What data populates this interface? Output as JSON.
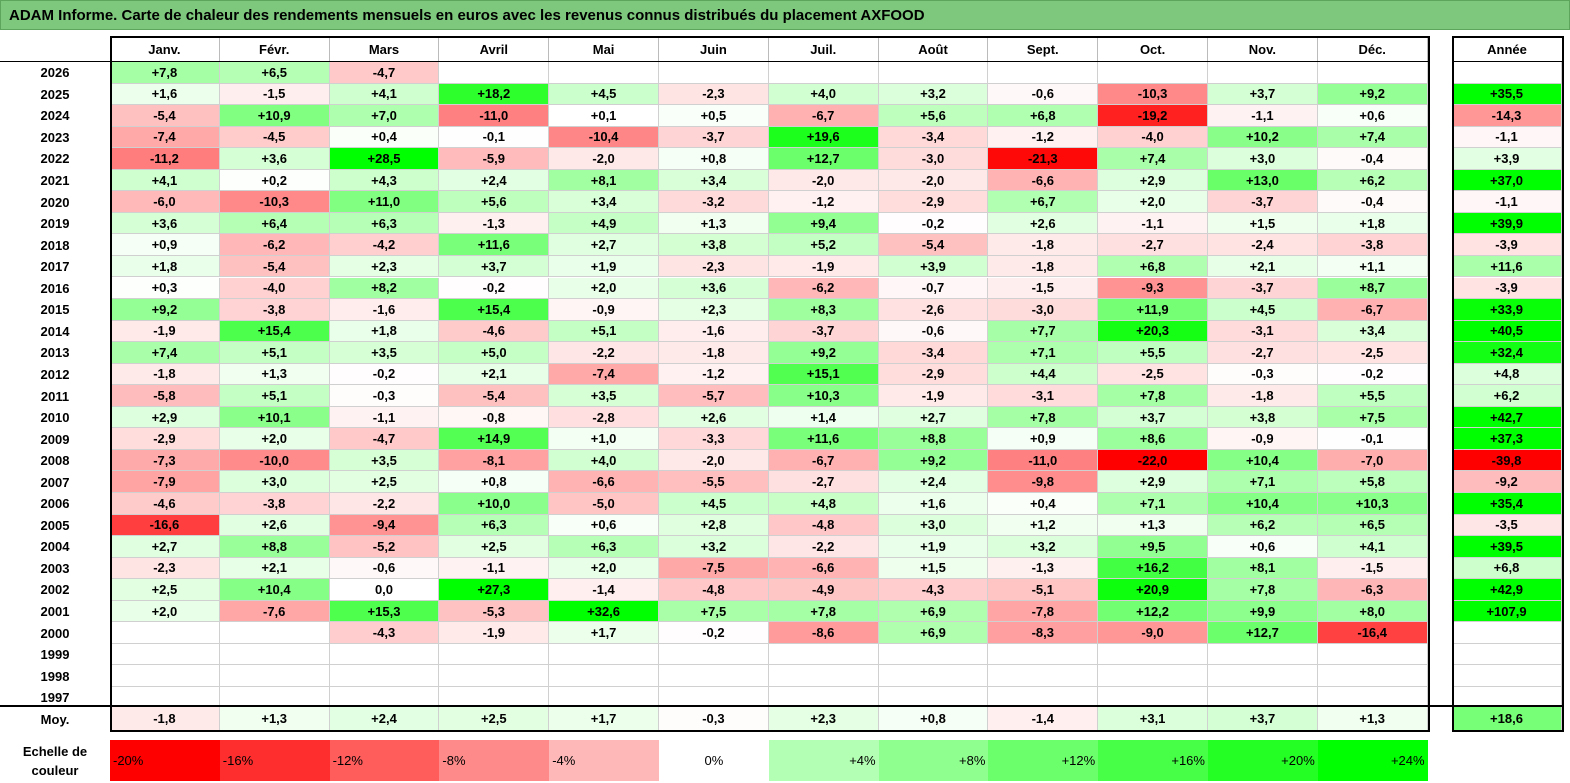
{
  "title": "ADAM Informe. Carte de chaleur des rendements mensuels en euros avec les revenus connus distribués du placement AXFOOD",
  "chart_data": {
    "type": "heatmap",
    "months": [
      "Janv.",
      "Févr.",
      "Mars",
      "Avril",
      "Mai",
      "Juin",
      "Juil.",
      "Août",
      "Sept.",
      "Oct.",
      "Nov.",
      "Déc."
    ],
    "year_header": "Année",
    "rows": [
      {
        "year": "2026",
        "months": [
          "+7,8",
          "+6,5",
          "-4,7",
          "",
          "",
          "",
          "",
          "",
          "",
          "",
          "",
          ""
        ],
        "annual": ""
      },
      {
        "year": "2025",
        "months": [
          "+1,6",
          "-1,5",
          "+4,1",
          "+18,2",
          "+4,5",
          "-2,3",
          "+4,0",
          "+3,2",
          "-0,6",
          "-10,3",
          "+3,7",
          "+9,2"
        ],
        "annual": "+35,5"
      },
      {
        "year": "2024",
        "months": [
          "-5,4",
          "+10,9",
          "+7,0",
          "-11,0",
          "+0,1",
          "+0,5",
          "-6,7",
          "+5,6",
          "+6,8",
          "-19,2",
          "-1,1",
          "+0,6"
        ],
        "annual": "-14,3"
      },
      {
        "year": "2023",
        "months": [
          "-7,4",
          "-4,5",
          "+0,4",
          "-0,1",
          "-10,4",
          "-3,7",
          "+19,6",
          "-3,4",
          "-1,2",
          "-4,0",
          "+10,2",
          "+7,4"
        ],
        "annual": "-1,1"
      },
      {
        "year": "2022",
        "months": [
          "-11,2",
          "+3,6",
          "+28,5",
          "-5,9",
          "-2,0",
          "+0,8",
          "+12,7",
          "-3,0",
          "-21,3",
          "+7,4",
          "+3,0",
          "-0,4"
        ],
        "annual": "+3,9"
      },
      {
        "year": "2021",
        "months": [
          "+4,1",
          "+0,2",
          "+4,3",
          "+2,4",
          "+8,1",
          "+3,4",
          "-2,0",
          "-2,0",
          "-6,6",
          "+2,9",
          "+13,0",
          "+6,2"
        ],
        "annual": "+37,0"
      },
      {
        "year": "2020",
        "months": [
          "-6,0",
          "-10,3",
          "+11,0",
          "+5,6",
          "+3,4",
          "-3,2",
          "-1,2",
          "-2,9",
          "+6,7",
          "+2,0",
          "-3,7",
          "-0,4"
        ],
        "annual": "-1,1"
      },
      {
        "year": "2019",
        "months": [
          "+3,6",
          "+6,4",
          "+6,3",
          "-1,3",
          "+4,9",
          "+1,3",
          "+9,4",
          "-0,2",
          "+2,6",
          "-1,1",
          "+1,5",
          "+1,8"
        ],
        "annual": "+39,9"
      },
      {
        "year": "2018",
        "months": [
          "+0,9",
          "-6,2",
          "-4,2",
          "+11,6",
          "+2,7",
          "+3,8",
          "+5,2",
          "-5,4",
          "-1,8",
          "-2,7",
          "-2,4",
          "-3,8"
        ],
        "annual": "-3,9"
      },
      {
        "year": "2017",
        "months": [
          "+1,8",
          "-5,4",
          "+2,3",
          "+3,7",
          "+1,9",
          "-2,3",
          "-1,9",
          "+3,9",
          "-1,8",
          "+6,8",
          "+2,1",
          "+1,1"
        ],
        "annual": "+11,6"
      },
      {
        "year": "2016",
        "months": [
          "+0,3",
          "-4,0",
          "+8,2",
          "-0,2",
          "+2,0",
          "+3,6",
          "-6,2",
          "-0,7",
          "-1,5",
          "-9,3",
          "-3,7",
          "+8,7"
        ],
        "annual": "-3,9"
      },
      {
        "year": "2015",
        "months": [
          "+9,2",
          "-3,8",
          "-1,6",
          "+15,4",
          "-0,9",
          "+2,3",
          "+8,3",
          "-2,6",
          "-3,0",
          "+11,9",
          "+4,5",
          "-6,7"
        ],
        "annual": "+33,9"
      },
      {
        "year": "2014",
        "months": [
          "-1,9",
          "+15,4",
          "+1,8",
          "-4,6",
          "+5,1",
          "-1,6",
          "-3,7",
          "-0,6",
          "+7,7",
          "+20,3",
          "-3,1",
          "+3,4"
        ],
        "annual": "+40,5"
      },
      {
        "year": "2013",
        "months": [
          "+7,4",
          "+5,1",
          "+3,5",
          "+5,0",
          "-2,2",
          "-1,8",
          "+9,2",
          "-3,4",
          "+7,1",
          "+5,5",
          "-2,7",
          "-2,5"
        ],
        "annual": "+32,4"
      },
      {
        "year": "2012",
        "months": [
          "-1,8",
          "+1,3",
          "-0,2",
          "+2,1",
          "-7,4",
          "-1,2",
          "+15,1",
          "-2,9",
          "+4,4",
          "-2,5",
          "-0,3",
          "-0,2"
        ],
        "annual": "+4,8"
      },
      {
        "year": "2011",
        "months": [
          "-5,8",
          "+5,1",
          "-0,3",
          "-5,4",
          "+3,5",
          "-5,7",
          "+10,3",
          "-1,9",
          "-3,1",
          "+7,8",
          "-1,8",
          "+5,5"
        ],
        "annual": "+6,2"
      },
      {
        "year": "2010",
        "months": [
          "+2,9",
          "+10,1",
          "-1,1",
          "-0,8",
          "-2,8",
          "+2,6",
          "+1,4",
          "+2,7",
          "+7,8",
          "+3,7",
          "+3,8",
          "+7,5"
        ],
        "annual": "+42,7"
      },
      {
        "year": "2009",
        "months": [
          "-2,9",
          "+2,0",
          "-4,7",
          "+14,9",
          "+1,0",
          "-3,3",
          "+11,6",
          "+8,8",
          "+0,9",
          "+8,6",
          "-0,9",
          "-0,1"
        ],
        "annual": "+37,3"
      },
      {
        "year": "2008",
        "months": [
          "-7,3",
          "-10,0",
          "+3,5",
          "-8,1",
          "+4,0",
          "-2,0",
          "-6,7",
          "+9,2",
          "-11,0",
          "-22,0",
          "+10,4",
          "-7,0"
        ],
        "annual": "-39,8"
      },
      {
        "year": "2007",
        "months": [
          "-7,9",
          "+3,0",
          "+2,5",
          "+0,8",
          "-6,6",
          "-5,5",
          "-2,7",
          "+2,4",
          "-9,8",
          "+2,9",
          "+7,1",
          "+5,8"
        ],
        "annual": "-9,2"
      },
      {
        "year": "2006",
        "months": [
          "-4,6",
          "-3,8",
          "-2,2",
          "+10,0",
          "-5,0",
          "+4,5",
          "+4,8",
          "+1,6",
          "+0,4",
          "+7,1",
          "+10,4",
          "+10,3"
        ],
        "annual": "+35,4"
      },
      {
        "year": "2005",
        "months": [
          "-16,6",
          "+2,6",
          "-9,4",
          "+6,3",
          "+0,6",
          "+2,8",
          "-4,8",
          "+3,0",
          "+1,2",
          "+1,3",
          "+6,2",
          "+6,5"
        ],
        "annual": "-3,5"
      },
      {
        "year": "2004",
        "months": [
          "+2,7",
          "+8,8",
          "-5,2",
          "+2,5",
          "+6,3",
          "+3,2",
          "-2,2",
          "+1,9",
          "+3,2",
          "+9,5",
          "+0,6",
          "+4,1"
        ],
        "annual": "+39,5"
      },
      {
        "year": "2003",
        "months": [
          "-2,3",
          "+2,1",
          "-0,6",
          "-1,1",
          "+2,0",
          "-7,5",
          "-6,6",
          "+1,5",
          "-1,3",
          "+16,2",
          "+8,1",
          "-1,5"
        ],
        "annual": "+6,8"
      },
      {
        "year": "2002",
        "months": [
          "+2,5",
          "+10,4",
          "0,0",
          "+27,3",
          "-1,4",
          "-4,8",
          "-4,9",
          "-4,3",
          "-5,1",
          "+20,9",
          "+7,8",
          "-6,3"
        ],
        "annual": "+42,9"
      },
      {
        "year": "2001",
        "months": [
          "+2,0",
          "-7,6",
          "+15,3",
          "-5,3",
          "+32,6",
          "+7,5",
          "+7,8",
          "+6,9",
          "-7,8",
          "+12,2",
          "+9,9",
          "+8,0"
        ],
        "annual": "+107,9"
      },
      {
        "year": "2000",
        "months": [
          "",
          "",
          "-4,3",
          "-1,9",
          "+1,7",
          "-0,2",
          "-8,6",
          "+6,9",
          "-8,3",
          "-9,0",
          "+12,7",
          "-16,4"
        ],
        "annual": ""
      },
      {
        "year": "1999",
        "months": [
          "",
          "",
          "",
          "",
          "",
          "",
          "",
          "",
          "",
          "",
          "",
          ""
        ],
        "annual": ""
      },
      {
        "year": "1998",
        "months": [
          "",
          "",
          "",
          "",
          "",
          "",
          "",
          "",
          "",
          "",
          "",
          ""
        ],
        "annual": ""
      },
      {
        "year": "1997",
        "months": [
          "",
          "",
          "",
          "",
          "",
          "",
          "",
          "",
          "",
          "",
          "",
          ""
        ],
        "annual": ""
      }
    ],
    "average": {
      "label": "Moy.",
      "months": [
        "-1,8",
        "+1,3",
        "+2,4",
        "+2,5",
        "+1,7",
        "-0,3",
        "+2,3",
        "+0,8",
        "-1,4",
        "+3,1",
        "+3,7",
        "+1,3"
      ],
      "annual": "+18,6"
    },
    "legend": {
      "label": "Echelle de couleur",
      "steps": [
        {
          "label": "-20%",
          "value": -20
        },
        {
          "label": "-16%",
          "value": -16
        },
        {
          "label": "-12%",
          "value": -12
        },
        {
          "label": "-8%",
          "value": -8
        },
        {
          "label": "-4%",
          "value": -4
        },
        {
          "label": "0%",
          "value": 0
        },
        {
          "label": "+4%",
          "value": 4
        },
        {
          "label": "+8%",
          "value": 8
        },
        {
          "label": "+12%",
          "value": 12
        },
        {
          "label": "+16%",
          "value": 16
        },
        {
          "label": "+20%",
          "value": 20
        },
        {
          "label": "+24%",
          "value": 24
        }
      ]
    },
    "colors": {
      "negative_max": "#ff0000",
      "neutral": "#ffffff",
      "positive_max": "#00ff00"
    }
  }
}
